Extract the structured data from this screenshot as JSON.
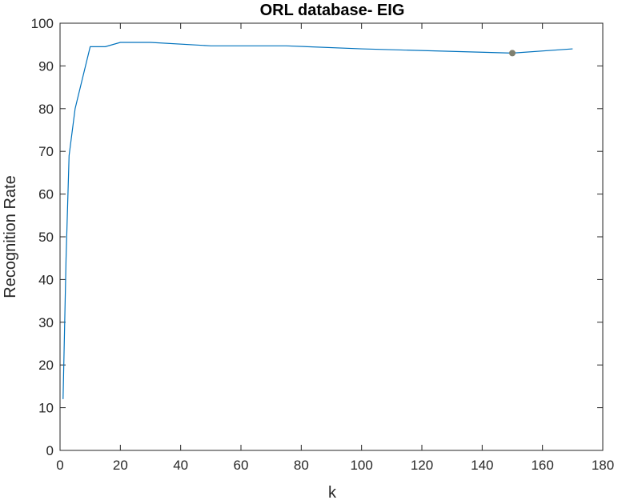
{
  "chart_data": {
    "type": "line",
    "title": "ORL database- EIG",
    "xlabel": "k",
    "ylabel": "Recognition Rate",
    "xlim": [
      0,
      180
    ],
    "ylim": [
      0,
      100
    ],
    "xticks": [
      0,
      20,
      40,
      60,
      80,
      100,
      120,
      140,
      160,
      180
    ],
    "yticks": [
      0,
      10,
      20,
      30,
      40,
      50,
      60,
      70,
      80,
      90,
      100
    ],
    "grid": false,
    "box": true,
    "series": [
      {
        "color": "#0072BD",
        "x": [
          1,
          2,
          3,
          5,
          10,
          15,
          20,
          30,
          50,
          75,
          100,
          150,
          170
        ],
        "y": [
          12,
          45,
          69,
          80,
          94.5,
          94.5,
          95.5,
          95.5,
          94.7,
          94.7,
          94,
          93,
          94
        ]
      }
    ],
    "marker_point": {
      "x": 150,
      "y": 93,
      "color": "#7F7F6F"
    }
  }
}
